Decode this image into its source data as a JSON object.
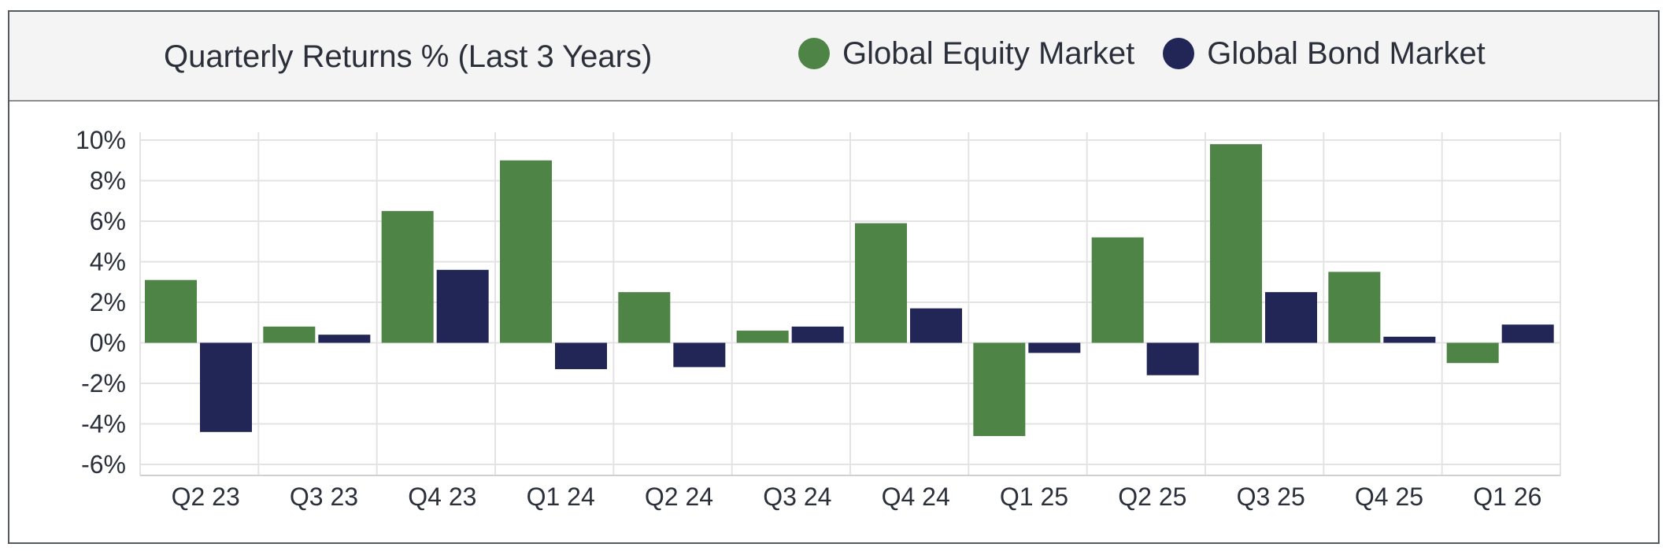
{
  "title": "Quarterly Returns % (Last 3 Years)",
  "legend": [
    {
      "label": "Global Equity Market",
      "color": "#4f8447"
    },
    {
      "label": "Global Bond Market",
      "color": "#212657"
    }
  ],
  "chart_data": {
    "type": "bar",
    "title": "Quarterly Returns % (Last 3 Years)",
    "categories": [
      "Q2 23",
      "Q3 23",
      "Q4 23",
      "Q1 24",
      "Q2 24",
      "Q3 24",
      "Q4 24",
      "Q1 25",
      "Q2 25",
      "Q3 25",
      "Q4 25",
      "Q1 26"
    ],
    "series": [
      {
        "name": "Global Equity Market",
        "color": "#4f8447",
        "values": [
          3.1,
          0.8,
          6.5,
          9.0,
          2.5,
          0.6,
          5.9,
          -4.6,
          5.2,
          9.8,
          3.5,
          -1.0
        ]
      },
      {
        "name": "Global Bond Market",
        "color": "#212657",
        "values": [
          -4.4,
          0.4,
          3.6,
          -1.3,
          -1.2,
          0.8,
          1.7,
          -0.5,
          -1.6,
          2.5,
          0.3,
          0.9
        ]
      }
    ],
    "ylim": [
      -6,
      10
    ],
    "yticks": [
      10,
      8,
      6,
      4,
      2,
      0,
      -2,
      -4,
      -6
    ],
    "ytick_labels": [
      "10%",
      "8%",
      "6%",
      "4%",
      "2%",
      "0%",
      "-2%",
      "-4%",
      "-6%"
    ],
    "grid": true,
    "legend_position": "top"
  }
}
